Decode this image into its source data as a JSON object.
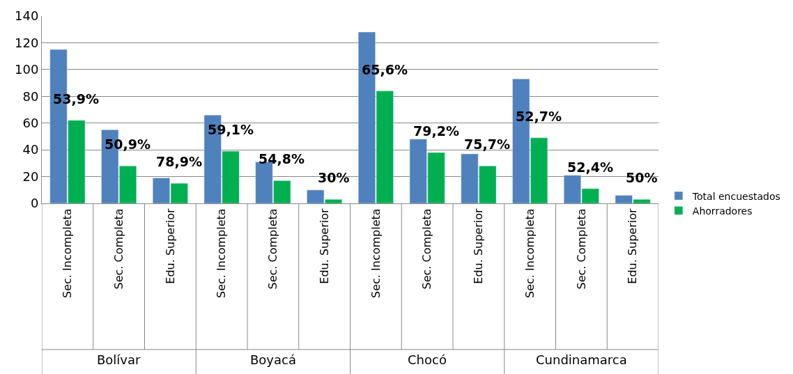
{
  "chart_data": {
    "type": "bar",
    "categories": [
      "Sec. Incompleta",
      "Sec. Completa",
      "Edu. Superior",
      "Sec. Incompleta",
      "Sec. Completa",
      "Edu. Superior",
      "Sec. Incompleta",
      "Sec. Completa",
      "Edu. Superior",
      "Sec. Incompleta",
      "Sec. Completa",
      "Edu. Superior"
    ],
    "series": [
      {
        "name": "Total encuestados",
        "color": "#4f81bd",
        "values": [
          115,
          55,
          19,
          66,
          31,
          10,
          128,
          48,
          37,
          93,
          21,
          6
        ]
      },
      {
        "name": "Ahorradores",
        "color": "#00b050",
        "values": [
          62,
          28,
          15,
          39,
          17,
          3,
          84,
          38,
          28,
          49,
          11,
          3
        ]
      }
    ],
    "annotations": [
      "Bolívar",
      "Boyacá",
      "Chocó",
      "Cundinamarca",
      {
        "text": "53,9%",
        "y": 62
      },
      {
        "text": "50,9%",
        "y": 28
      },
      {
        "text": "78,9%",
        "y": 15
      },
      {
        "text": "59,1%",
        "y": 39
      },
      {
        "text": "54,8%",
        "y": 17
      },
      {
        "text": "30%",
        "y": 3
      },
      {
        "text": "65,6%",
        "y": 84
      },
      {
        "text": "79,2%",
        "y": 38
      },
      {
        "text": "75,7%",
        "y": 28
      },
      {
        "text": "52,7%",
        "y": 49
      },
      {
        "text": "52,4%",
        "y": 11
      },
      {
        "text": "50%",
        "y": 3
      }
    ],
    "ylim": [
      0,
      140
    ],
    "yticks": [
      0,
      20,
      40,
      60,
      80,
      100,
      120,
      140
    ],
    "grid": "y",
    "legend": "right"
  }
}
